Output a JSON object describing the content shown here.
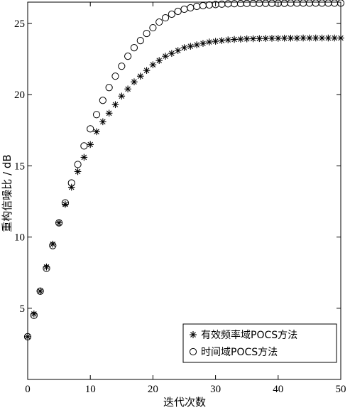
{
  "chart_data": {
    "type": "scatter",
    "xlabel": "迭代次数",
    "ylabel": "重构信噪比 / dB",
    "xlim": [
      0,
      50
    ],
    "ylim": [
      0,
      26.5
    ],
    "xticks": [
      0,
      10,
      20,
      30,
      40,
      50
    ],
    "yticks": [
      5,
      10,
      15,
      20,
      25
    ],
    "grid": false,
    "legend_position": "bottom-right",
    "series": [
      {
        "name": "有效频率域POCS方法",
        "marker": "asterisk",
        "x": [
          0,
          1,
          2,
          3,
          4,
          5,
          6,
          7,
          8,
          9,
          10,
          11,
          12,
          13,
          14,
          15,
          16,
          17,
          18,
          19,
          20,
          21,
          22,
          23,
          24,
          25,
          26,
          27,
          28,
          29,
          30,
          31,
          32,
          33,
          34,
          35,
          36,
          37,
          38,
          39,
          40,
          41,
          42,
          43,
          44,
          45,
          46,
          47,
          48,
          49,
          50
        ],
        "y": [
          3.0,
          4.6,
          6.2,
          7.9,
          9.5,
          11.0,
          12.3,
          13.5,
          14.6,
          15.6,
          16.5,
          17.4,
          18.1,
          18.7,
          19.3,
          19.9,
          20.4,
          20.9,
          21.3,
          21.7,
          22.1,
          22.4,
          22.7,
          22.9,
          23.1,
          23.3,
          23.4,
          23.5,
          23.6,
          23.7,
          23.75,
          23.8,
          23.85,
          23.88,
          23.9,
          23.92,
          23.93,
          23.94,
          23.95,
          23.96,
          23.96,
          23.97,
          23.97,
          23.97,
          23.98,
          23.98,
          23.98,
          23.98,
          23.98,
          23.98,
          23.98
        ]
      },
      {
        "name": "时间域POCS方法",
        "marker": "circle",
        "x": [
          0,
          1,
          2,
          3,
          4,
          5,
          6,
          7,
          8,
          9,
          10,
          11,
          12,
          13,
          14,
          15,
          16,
          17,
          18,
          19,
          20,
          21,
          22,
          23,
          24,
          25,
          26,
          27,
          28,
          29,
          30,
          31,
          32,
          33,
          34,
          35,
          36,
          37,
          38,
          39,
          40,
          41,
          42,
          43,
          44,
          45,
          46,
          47,
          48,
          49,
          50
        ],
        "y": [
          3.0,
          4.5,
          6.2,
          7.8,
          9.4,
          11.0,
          12.4,
          13.8,
          15.1,
          16.4,
          17.6,
          18.6,
          19.6,
          20.5,
          21.3,
          22.0,
          22.7,
          23.3,
          23.8,
          24.3,
          24.7,
          25.1,
          25.4,
          25.65,
          25.85,
          26.0,
          26.1,
          26.2,
          26.25,
          26.3,
          26.33,
          26.36,
          26.38,
          26.39,
          26.4,
          26.41,
          26.41,
          26.42,
          26.42,
          26.42,
          26.42,
          26.42,
          26.43,
          26.43,
          26.43,
          26.43,
          26.43,
          26.43,
          26.43,
          26.43,
          26.43
        ]
      }
    ]
  }
}
